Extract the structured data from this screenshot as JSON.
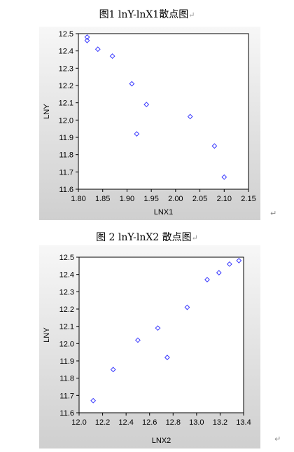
{
  "captions": [
    {
      "text": "图1 lnY-lnX1散点图",
      "mark": "↵"
    },
    {
      "text": "图 2 lnY-lnX2 散点图",
      "mark": "↵"
    }
  ],
  "paragraph_mark": "↵",
  "colors": {
    "marker": "#3a3aff",
    "panel_bg_start": "#f7f7f7",
    "panel_bg_end": "#cfcfcf",
    "plot_bg": "#ffffff",
    "frame": "#000000"
  },
  "chart_data": [
    {
      "type": "scatter",
      "title": "图1 lnY-lnX1散点图",
      "xlabel": "LNX1",
      "ylabel": "LNY",
      "xlim": [
        1.8,
        2.15
      ],
      "ylim": [
        11.6,
        12.5
      ],
      "xticks": [
        "1.80",
        "1.85",
        "1.90",
        "1.95",
        "2.00",
        "2.05",
        "2.10",
        "2.15"
      ],
      "yticks": [
        "11.6",
        "11.7",
        "11.8",
        "11.9",
        "12.0",
        "12.1",
        "12.2",
        "12.3",
        "12.4",
        "12.5"
      ],
      "marker": "diamond",
      "grid": false,
      "points": [
        {
          "x": 1.818,
          "y": 12.48
        },
        {
          "x": 1.818,
          "y": 12.46
        },
        {
          "x": 1.84,
          "y": 12.41
        },
        {
          "x": 1.87,
          "y": 12.37
        },
        {
          "x": 1.91,
          "y": 12.21
        },
        {
          "x": 1.94,
          "y": 12.09
        },
        {
          "x": 1.92,
          "y": 11.92
        },
        {
          "x": 2.03,
          "y": 12.02
        },
        {
          "x": 2.08,
          "y": 11.85
        },
        {
          "x": 2.1,
          "y": 11.67
        }
      ]
    },
    {
      "type": "scatter",
      "title": "图 2 lnY-lnX2 散点图",
      "xlabel": "LNX2",
      "ylabel": "LNY",
      "xlim": [
        12.0,
        13.4
      ],
      "ylim": [
        11.6,
        12.5
      ],
      "xticks": [
        "12.0",
        "12.2",
        "12.4",
        "12.6",
        "12.8",
        "13.0",
        "13.2",
        "13.4"
      ],
      "yticks": [
        "11.6",
        "11.7",
        "11.8",
        "11.9",
        "12.0",
        "12.1",
        "12.2",
        "12.3",
        "12.4",
        "12.5"
      ],
      "marker": "diamond",
      "grid": false,
      "points": [
        {
          "x": 12.12,
          "y": 11.67
        },
        {
          "x": 12.29,
          "y": 11.85
        },
        {
          "x": 12.5,
          "y": 12.02
        },
        {
          "x": 12.67,
          "y": 12.09
        },
        {
          "x": 12.75,
          "y": 11.92
        },
        {
          "x": 12.92,
          "y": 12.21
        },
        {
          "x": 13.09,
          "y": 12.37
        },
        {
          "x": 13.19,
          "y": 12.41
        },
        {
          "x": 13.28,
          "y": 12.46
        },
        {
          "x": 13.36,
          "y": 12.48
        }
      ]
    }
  ]
}
